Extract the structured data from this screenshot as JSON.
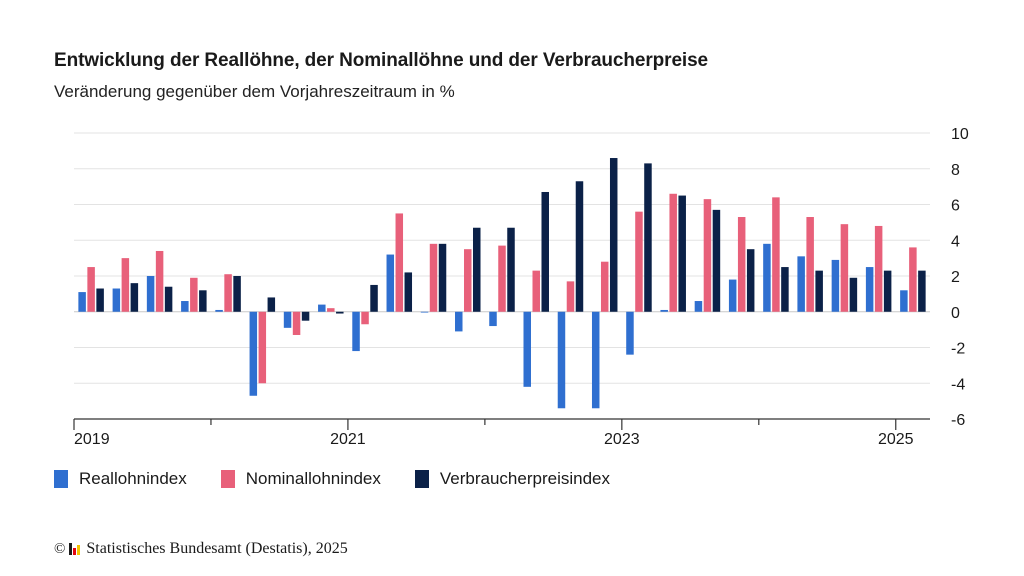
{
  "title": "Entwicklung der Reallöhne, der Nominallöhne und der Verbraucherpreise",
  "subtitle": "Veränderung gegenüber dem Vorjahreszeitraum in %",
  "footer": {
    "copyright": "©",
    "source": "Statistisches Bundesamt (Destatis), 2025",
    "logo_icon": "destatis-logo-icon",
    "logo_colors": [
      "#1a1a1a",
      "#e30613",
      "#f5c400"
    ]
  },
  "chart_data": {
    "type": "bar",
    "ylim": [
      -6,
      10
    ],
    "yticks": [
      -6,
      -4,
      -2,
      0,
      2,
      4,
      6,
      8,
      10
    ],
    "ytick_labels": [
      "-6",
      "-4",
      "-2",
      "0",
      "2",
      "4",
      "6",
      "8",
      "10"
    ],
    "grid": true,
    "legend_position": "bottom-left",
    "xtick_labels": [
      "2019",
      "2021",
      "2023",
      "2025"
    ],
    "categories": [
      "2019-Q1",
      "2019-Q2",
      "2019-Q3",
      "2019-Q4",
      "2020-Q1",
      "2020-Q2",
      "2020-Q3",
      "2020-Q4",
      "2021-Q1",
      "2021-Q2",
      "2021-Q3",
      "2021-Q4",
      "2022-Q1",
      "2022-Q2",
      "2022-Q3",
      "2022-Q4",
      "2023-Q1",
      "2023-Q2",
      "2023-Q3",
      "2023-Q4",
      "2024-Q1",
      "2024-Q2",
      "2024-Q3",
      "2024-Q4",
      "2025-Q1"
    ],
    "series": [
      {
        "name": "Reallohnindex",
        "color": "#2f6fd0",
        "values": [
          1.1,
          1.3,
          2.0,
          0.6,
          0.1,
          -4.7,
          -0.9,
          0.4,
          -2.2,
          3.2,
          0.0,
          -1.1,
          -0.8,
          -4.2,
          -5.4,
          -5.4,
          -2.4,
          0.1,
          0.6,
          1.8,
          3.8,
          3.1,
          2.9,
          2.5,
          1.2
        ]
      },
      {
        "name": "Nominallohnindex",
        "color": "#e8607a",
        "values": [
          2.5,
          3.0,
          3.4,
          1.9,
          2.1,
          -4.0,
          -1.3,
          0.2,
          -0.7,
          5.5,
          3.8,
          3.5,
          3.7,
          2.3,
          1.7,
          2.8,
          5.6,
          6.6,
          6.3,
          5.3,
          6.4,
          5.3,
          4.9,
          4.8,
          3.6
        ]
      },
      {
        "name": "Verbraucherpreisindex",
        "color": "#0b2148",
        "values": [
          1.3,
          1.6,
          1.4,
          1.2,
          2.0,
          0.8,
          -0.5,
          -0.1,
          1.5,
          2.2,
          3.8,
          4.7,
          4.7,
          6.7,
          7.3,
          8.6,
          8.3,
          6.5,
          5.7,
          3.5,
          2.5,
          2.3,
          1.9,
          2.3,
          2.3
        ]
      }
    ]
  }
}
